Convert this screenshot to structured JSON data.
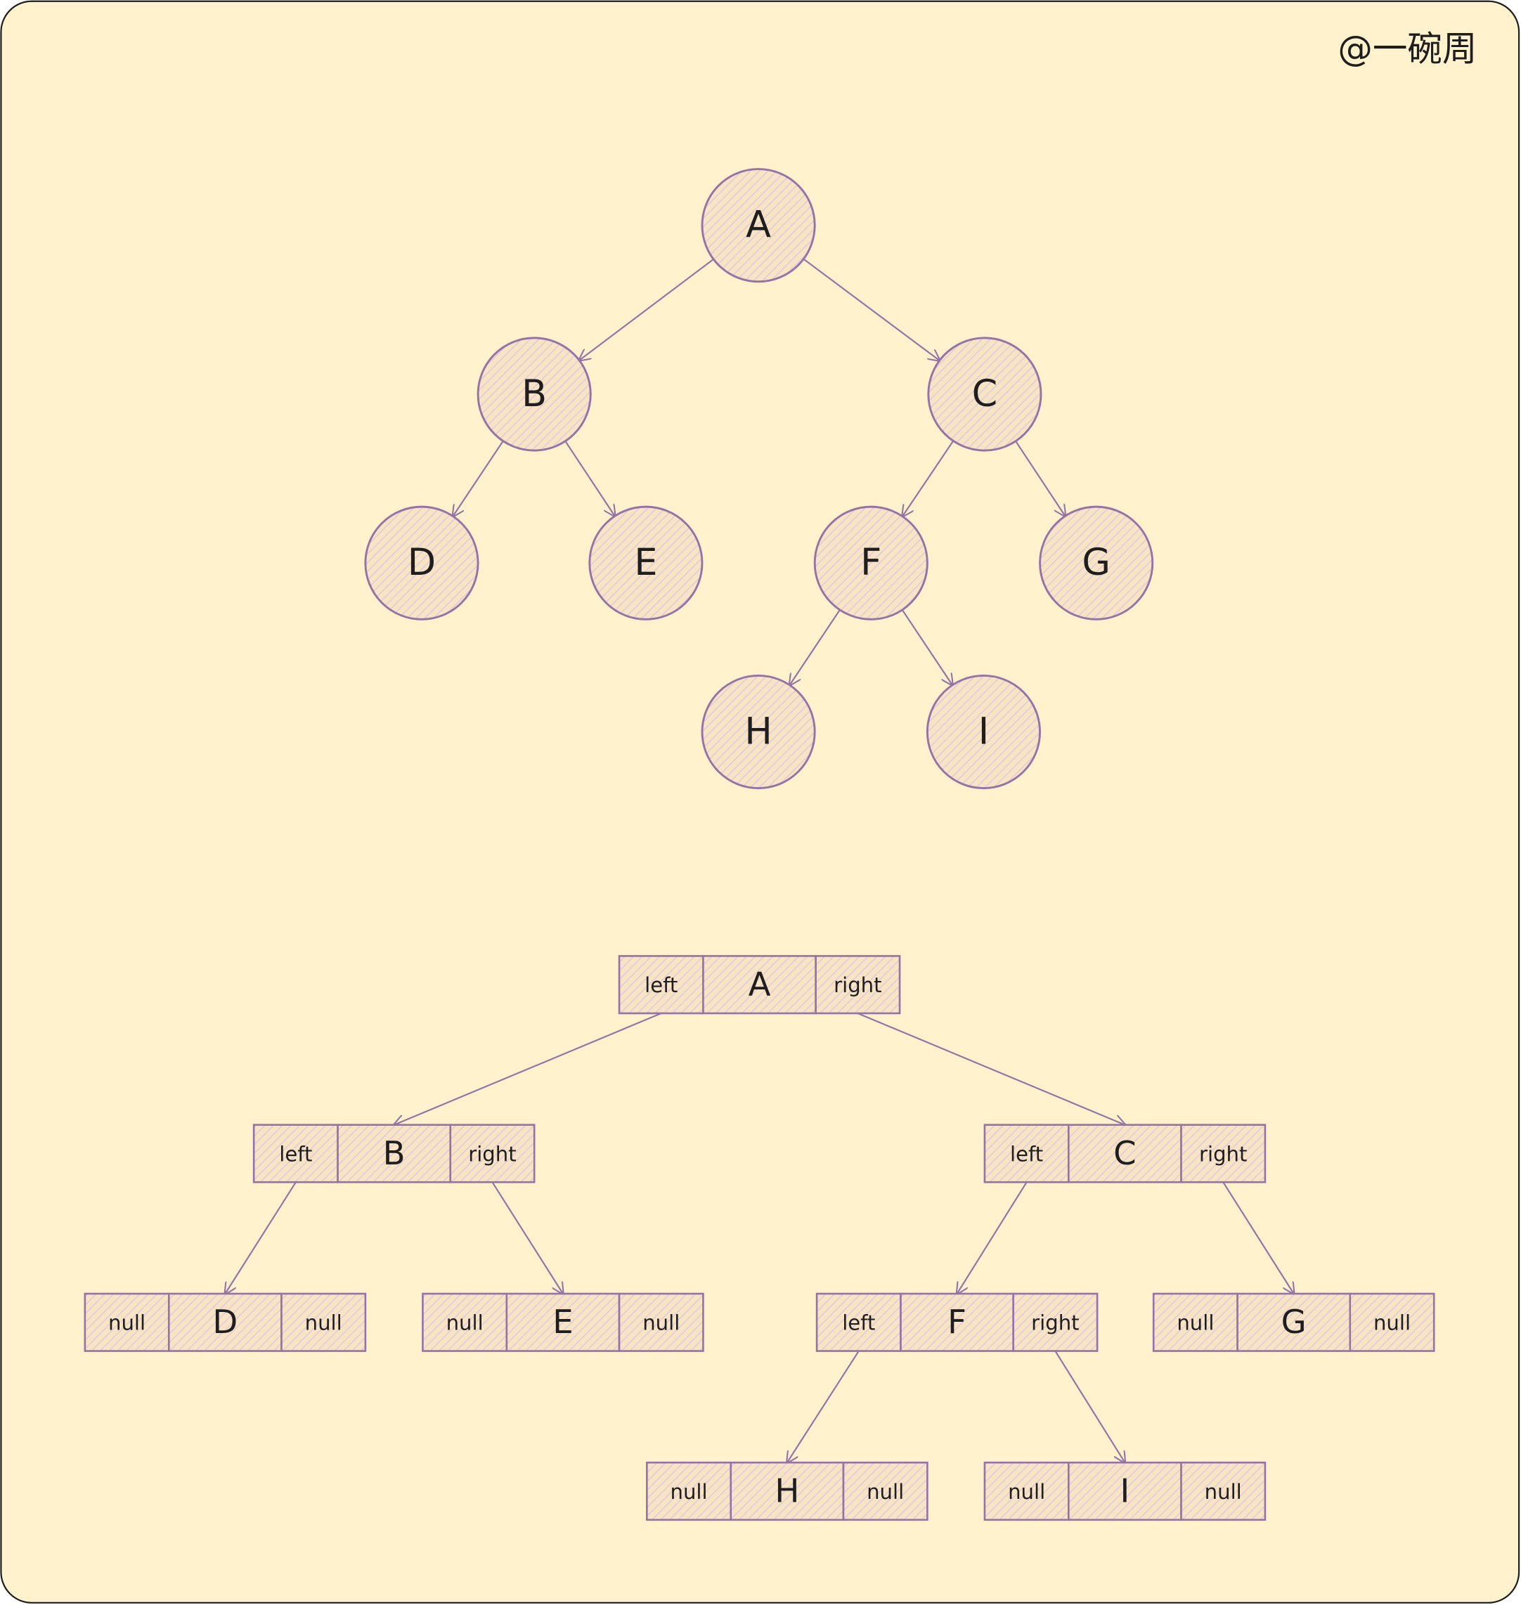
{
  "watermark": "@一碗周",
  "tree": {
    "nodes": [
      {
        "label": "A"
      },
      {
        "label": "B"
      },
      {
        "label": "C"
      },
      {
        "label": "D"
      },
      {
        "label": "E"
      },
      {
        "label": "F"
      },
      {
        "label": "G"
      },
      {
        "label": "H"
      },
      {
        "label": "I"
      }
    ]
  },
  "linked": {
    "nodes": [
      {
        "cells": [
          "left",
          "A",
          "right"
        ]
      },
      {
        "cells": [
          "left",
          "B",
          "right"
        ]
      },
      {
        "cells": [
          "left",
          "C",
          "right"
        ]
      },
      {
        "cells": [
          "null",
          "D",
          "null"
        ]
      },
      {
        "cells": [
          "null",
          "E",
          "null"
        ]
      },
      {
        "cells": [
          "left",
          "F",
          "right"
        ]
      },
      {
        "cells": [
          "null",
          "G",
          "null"
        ]
      },
      {
        "cells": [
          "null",
          "H",
          "null"
        ]
      },
      {
        "cells": [
          "null",
          "I",
          "null"
        ]
      }
    ]
  }
}
